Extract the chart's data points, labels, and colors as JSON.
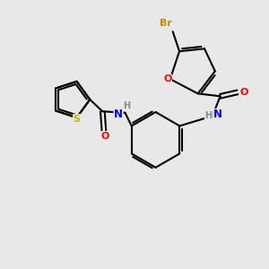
{
  "background_color": "#e8e8e8",
  "bond_color": "#000000",
  "atom_colors": {
    "O": "#ff0000",
    "N": "#0000ff",
    "S": "#b8b800",
    "Br": "#cc8800",
    "H": "#888888",
    "C": "#000000"
  }
}
